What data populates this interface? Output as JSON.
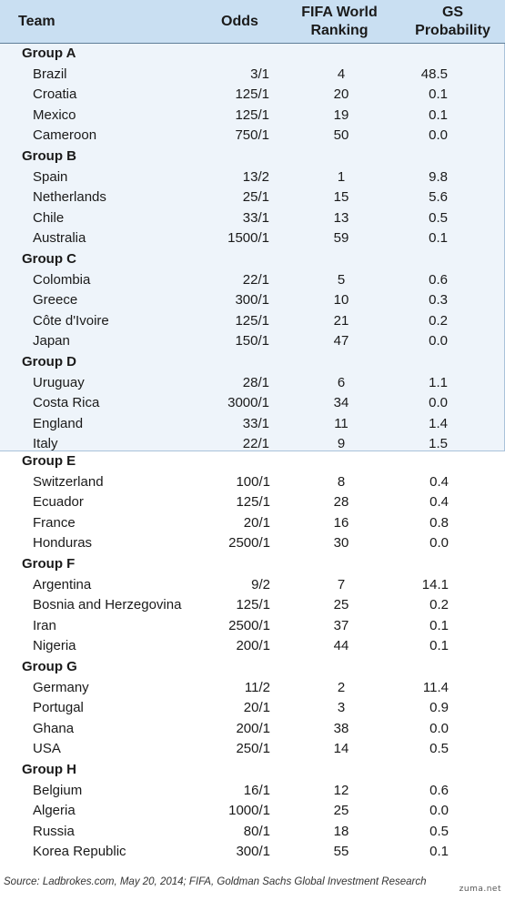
{
  "header": {
    "team": "Team",
    "odds": "Odds",
    "ranking_line1": "FIFA World",
    "ranking_line2": "Ranking",
    "prob_line1": "GS",
    "prob_line2": "Probability"
  },
  "chart_data": {
    "type": "table",
    "columns": [
      "Team",
      "Odds",
      "FIFA World Ranking",
      "GS Probability"
    ],
    "groups": [
      {
        "name": "Group A",
        "teams": [
          {
            "team": "Brazil",
            "odds": "3/1",
            "ranking": "4",
            "probability": "48.5"
          },
          {
            "team": "Croatia",
            "odds": "125/1",
            "ranking": "20",
            "probability": "0.1"
          },
          {
            "team": "Mexico",
            "odds": "125/1",
            "ranking": "19",
            "probability": "0.1"
          },
          {
            "team": "Cameroon",
            "odds": "750/1",
            "ranking": "50",
            "probability": "0.0"
          }
        ]
      },
      {
        "name": "Group B",
        "teams": [
          {
            "team": "Spain",
            "odds": "13/2",
            "ranking": "1",
            "probability": "9.8"
          },
          {
            "team": "Netherlands",
            "odds": "25/1",
            "ranking": "15",
            "probability": "5.6"
          },
          {
            "team": "Chile",
            "odds": "33/1",
            "ranking": "13",
            "probability": "0.5"
          },
          {
            "team": "Australia",
            "odds": "1500/1",
            "ranking": "59",
            "probability": "0.1"
          }
        ]
      },
      {
        "name": "Group C",
        "teams": [
          {
            "team": "Colombia",
            "odds": "22/1",
            "ranking": "5",
            "probability": "0.6"
          },
          {
            "team": "Greece",
            "odds": "300/1",
            "ranking": "10",
            "probability": "0.3"
          },
          {
            "team": "Côte d'Ivoire",
            "odds": "125/1",
            "ranking": "21",
            "probability": "0.2"
          },
          {
            "team": "Japan",
            "odds": "150/1",
            "ranking": "47",
            "probability": "0.0"
          }
        ]
      },
      {
        "name": "Group D",
        "teams": [
          {
            "team": "Uruguay",
            "odds": "28/1",
            "ranking": "6",
            "probability": "1.1"
          },
          {
            "team": "Costa Rica",
            "odds": "3000/1",
            "ranking": "34",
            "probability": "0.0"
          },
          {
            "team": "England",
            "odds": "33/1",
            "ranking": "11",
            "probability": "1.4"
          },
          {
            "team": "Italy",
            "odds": "22/1",
            "ranking": "9",
            "probability": "1.5"
          }
        ]
      },
      {
        "name": "Group E",
        "teams": [
          {
            "team": "Switzerland",
            "odds": "100/1",
            "ranking": "8",
            "probability": "0.4"
          },
          {
            "team": "Ecuador",
            "odds": "125/1",
            "ranking": "28",
            "probability": "0.4"
          },
          {
            "team": "France",
            "odds": "20/1",
            "ranking": "16",
            "probability": "0.8"
          },
          {
            "team": "Honduras",
            "odds": "2500/1",
            "ranking": "30",
            "probability": "0.0"
          }
        ]
      },
      {
        "name": "Group F",
        "teams": [
          {
            "team": "Argentina",
            "odds": "9/2",
            "ranking": "7",
            "probability": "14.1"
          },
          {
            "team": "Bosnia and Herzegovina",
            "odds": "125/1",
            "ranking": "25",
            "probability": "0.2"
          },
          {
            "team": "Iran",
            "odds": "2500/1",
            "ranking": "37",
            "probability": "0.1"
          },
          {
            "team": "Nigeria",
            "odds": "200/1",
            "ranking": "44",
            "probability": "0.1"
          }
        ]
      },
      {
        "name": "Group G",
        "teams": [
          {
            "team": "Germany",
            "odds": "11/2",
            "ranking": "2",
            "probability": "11.4"
          },
          {
            "team": "Portugal",
            "odds": "20/1",
            "ranking": "3",
            "probability": "0.9"
          },
          {
            "team": "Ghana",
            "odds": "200/1",
            "ranking": "38",
            "probability": "0.0"
          },
          {
            "team": "USA",
            "odds": "250/1",
            "ranking": "14",
            "probability": "0.5"
          }
        ]
      },
      {
        "name": "Group H",
        "teams": [
          {
            "team": "Belgium",
            "odds": "16/1",
            "ranking": "12",
            "probability": "0.6"
          },
          {
            "team": "Algeria",
            "odds": "1000/1",
            "ranking": "25",
            "probability": "0.0"
          },
          {
            "team": "Russia",
            "odds": "80/1",
            "ranking": "18",
            "probability": "0.5"
          },
          {
            "team": "Korea Republic",
            "odds": "300/1",
            "ranking": "55",
            "probability": "0.1"
          }
        ]
      }
    ]
  },
  "colors": {
    "header_bg": "#c9dff2",
    "upper_section_bg": "#eef4fa",
    "lower_section_bg": "#ffffff"
  },
  "source": "Source: Ladbrokes.com, May 20, 2014; FIFA, Goldman Sachs Global Investment Research",
  "watermark": "zuma.net"
}
